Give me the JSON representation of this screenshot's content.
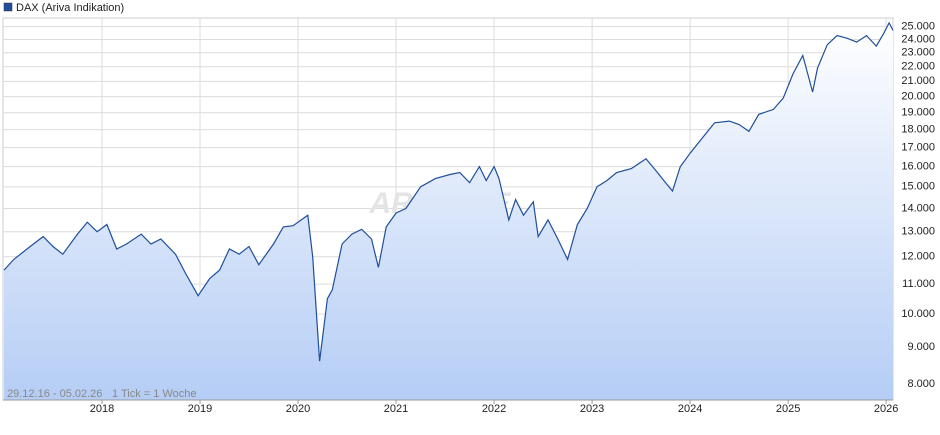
{
  "chart_data": {
    "type": "line",
    "series": [
      {
        "name": "DAX (Ariva Indikation)",
        "color": "#1f4e9c",
        "values": [
          11500,
          11900,
          12500,
          12800,
          12400,
          12100,
          12900,
          13400,
          13000,
          13300,
          12300,
          12500,
          12900,
          12500,
          12700,
          12100,
          11400,
          10600,
          11200,
          11500,
          12300,
          12100,
          12400,
          11700,
          12500,
          13200,
          13250,
          13700,
          12000,
          8600,
          10500,
          10800,
          12500,
          12900,
          13100,
          12700,
          11600,
          13200,
          13800,
          14000,
          15000,
          15400,
          15600,
          15700,
          15200,
          16000,
          15300,
          16000,
          15400,
          13500,
          14400,
          13700,
          14300,
          12800,
          13500,
          12700,
          11900,
          13300,
          14000,
          15000,
          15300,
          15700,
          15900,
          16400,
          15800,
          15200,
          14800,
          16000,
          16700,
          17700,
          18400,
          18500,
          18300,
          17900,
          18900,
          19200,
          19900,
          21500,
          22800,
          20300,
          21900,
          23600,
          24300,
          24100,
          23800,
          24300,
          23500,
          24400,
          25300,
          24700
        ]
      }
    ],
    "x": [
      2017.0,
      2017.1,
      2017.3,
      2017.4,
      2017.5,
      2017.6,
      2017.75,
      2017.85,
      2017.95,
      2018.05,
      2018.15,
      2018.25,
      2018.4,
      2018.5,
      2018.6,
      2018.75,
      2018.85,
      2018.98,
      2019.1,
      2019.2,
      2019.3,
      2019.4,
      2019.5,
      2019.6,
      2019.75,
      2019.85,
      2019.95,
      2020.1,
      2020.15,
      2020.22,
      2020.3,
      2020.35,
      2020.45,
      2020.55,
      2020.65,
      2020.75,
      2020.82,
      2020.9,
      2021.0,
      2021.1,
      2021.25,
      2021.4,
      2021.55,
      2021.65,
      2021.75,
      2021.85,
      2021.92,
      2022.0,
      2022.05,
      2022.15,
      2022.22,
      2022.3,
      2022.4,
      2022.45,
      2022.55,
      2022.65,
      2022.75,
      2022.85,
      2022.95,
      2023.05,
      2023.15,
      2023.25,
      2023.4,
      2023.55,
      2023.65,
      2023.75,
      2023.82,
      2023.9,
      2024.0,
      2024.15,
      2024.25,
      2024.4,
      2024.5,
      2024.6,
      2024.7,
      2024.85,
      2024.95,
      2025.05,
      2025.15,
      2025.25,
      2025.3,
      2025.4,
      2025.5,
      2025.6,
      2025.7,
      2025.8,
      2025.9,
      2025.97,
      2026.03,
      2026.07
    ],
    "xlim": [
      2016.99,
      2026.07
    ],
    "xticks": [
      2018,
      2019,
      2020,
      2021,
      2022,
      2023,
      2024,
      2025,
      2026
    ],
    "ylim": [
      7600,
      25700
    ],
    "log_scale": true,
    "yticks": [
      {
        "value": 8000,
        "label": "8.000"
      },
      {
        "value": 9000,
        "label": "9.000"
      },
      {
        "value": 10000,
        "label": "10.000"
      },
      {
        "value": 11000,
        "label": "11.000"
      },
      {
        "value": 12000,
        "label": "12.000"
      },
      {
        "value": 13000,
        "label": "13.000"
      },
      {
        "value": 14000,
        "label": "14.000"
      },
      {
        "value": 15000,
        "label": "15.000"
      },
      {
        "value": 16000,
        "label": "16.000"
      },
      {
        "value": 17000,
        "label": "17.000"
      },
      {
        "value": 18000,
        "label": "18.000"
      },
      {
        "value": 19000,
        "label": "19.000"
      },
      {
        "value": 20000,
        "label": "20.000"
      },
      {
        "value": 21000,
        "label": "21.000"
      },
      {
        "value": 22000,
        "label": "22.000"
      },
      {
        "value": 23000,
        "label": "23.000"
      },
      {
        "value": 24000,
        "label": "24.000"
      },
      {
        "value": 25000,
        "label": "25.000"
      }
    ],
    "grid": true,
    "date_range": "29.12.16 - 05.02.26",
    "tick_note": "1 Tick = 1 Woche",
    "watermark": "ARIVA.DE"
  }
}
